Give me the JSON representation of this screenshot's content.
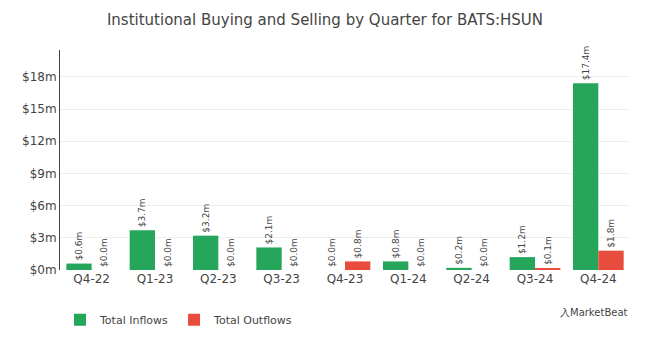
{
  "chart_data": {
    "type": "bar",
    "title": "Institutional Buying and Selling by Quarter for BATS:HSUN",
    "categories": [
      "Q4-22",
      "Q1-23",
      "Q2-23",
      "Q3-23",
      "Q4-23",
      "Q1-24",
      "Q2-24",
      "Q3-24",
      "Q4-24"
    ],
    "series": [
      {
        "name": "Total Inflows",
        "color": "#26a65b",
        "values": [
          0.6,
          3.7,
          3.2,
          2.1,
          0.0,
          0.8,
          0.2,
          1.2,
          17.4
        ],
        "value_labels": [
          "$0.6m",
          "$3.7m",
          "$3.2m",
          "$2.1m",
          "$0.0m",
          "$0.8m",
          "$0.2m",
          "$1.2m",
          "$17.4m"
        ]
      },
      {
        "name": "Total Outflows",
        "color": "#e74c3c",
        "values": [
          0.0,
          0.0,
          0.0,
          0.0,
          0.8,
          0.0,
          0.0,
          0.1,
          1.8
        ],
        "value_labels": [
          "$0.0m",
          "$0.0m",
          "$0.0m",
          "$0.0m",
          "$0.8m",
          "$0.0m",
          "$0.0m",
          "$0.1m",
          "$1.8m"
        ]
      }
    ],
    "ylim": [
      0,
      20.5
    ],
    "yticks": [
      {
        "value": 0,
        "label": "$0m"
      },
      {
        "value": 3,
        "label": "$3m"
      },
      {
        "value": 6,
        "label": "$6m"
      },
      {
        "value": 9,
        "label": "$9m"
      },
      {
        "value": 12,
        "label": "$12m"
      },
      {
        "value": 15,
        "label": "$15m"
      },
      {
        "value": 18,
        "label": "$18m"
      }
    ],
    "grid": true,
    "data_labels": true,
    "legend": "lower left",
    "annotations": [
      "⼊MarketBeat"
    ]
  }
}
